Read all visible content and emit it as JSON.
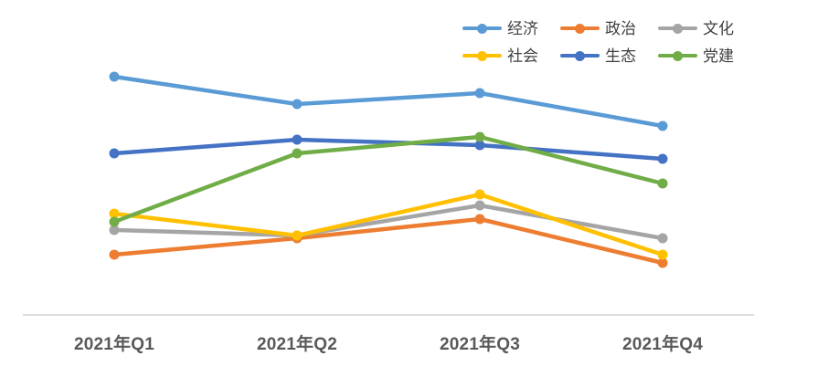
{
  "chart_data": {
    "type": "line",
    "title": "",
    "xlabel": "",
    "ylabel": "",
    "categories": [
      "2021年Q1",
      "2021年Q2",
      "2021年Q3",
      "2021年Q4"
    ],
    "series": [
      {
        "name": "经济",
        "color": "#5B9BD5",
        "values": [
          87,
          77,
          81,
          69
        ]
      },
      {
        "name": "政治",
        "color": "#ED7D31",
        "values": [
          22,
          28,
          35,
          19
        ]
      },
      {
        "name": "文化",
        "color": "#A5A5A5",
        "values": [
          31,
          29,
          40,
          28
        ]
      },
      {
        "name": "社会",
        "color": "#FFC000",
        "values": [
          37,
          29,
          44,
          22
        ]
      },
      {
        "name": "生态",
        "color": "#4472C4",
        "values": [
          59,
          64,
          62,
          57
        ]
      },
      {
        "name": "党建",
        "color": "#70AD47",
        "values": [
          34,
          59,
          65,
          48
        ]
      }
    ],
    "ylim": [
      0,
      100
    ],
    "grid": false,
    "marker": "circle",
    "legend_position": "top-right",
    "legend_rows": [
      [
        "经济",
        "政治",
        "文化"
      ],
      [
        "社会",
        "生态",
        "党建"
      ]
    ],
    "axis_line_color": "#D9D9D9",
    "axis_label_color": "#595959",
    "legend_text_color": "#404040"
  }
}
